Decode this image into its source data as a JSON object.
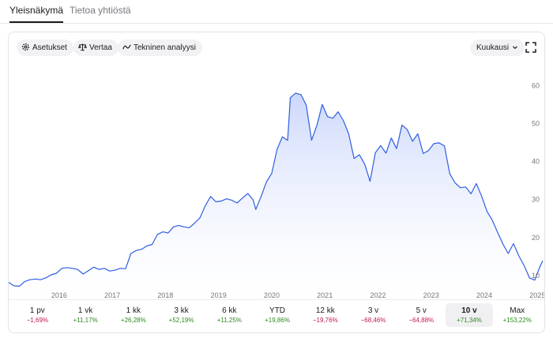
{
  "tabs": [
    {
      "label": "Yleisnäkymä",
      "active": true
    },
    {
      "label": "Tietoa yhtiöstä",
      "active": false
    }
  ],
  "toolbar": {
    "settings_label": "Asetukset",
    "compare_label": "Vertaa",
    "tech_label": "Tekninen analyysi",
    "period_label": "Kuukausi",
    "icons": [
      "gear-icon",
      "scale-icon",
      "line-chart-icon",
      "chevron-down-icon",
      "fullscreen-icon"
    ]
  },
  "chart_data": {
    "type": "area",
    "x_ticks": [
      "2016",
      "2017",
      "2018",
      "2019",
      "2020",
      "2021",
      "2022",
      "2023",
      "2024",
      "2025"
    ],
    "y_ticks": [
      "10",
      "20",
      "30",
      "40",
      "50",
      "60"
    ],
    "ylim": [
      5,
      64
    ],
    "xlim": [
      2015.55,
      2025.6
    ],
    "grid": false,
    "line_color": "#2f5fe0",
    "fill_color": "#e4eafc",
    "x": [
      2015.55,
      2015.65,
      2015.75,
      2015.85,
      2015.95,
      2016.05,
      2016.15,
      2016.25,
      2016.35,
      2016.45,
      2016.55,
      2016.65,
      2016.75,
      2016.85,
      2016.95,
      2017.05,
      2017.15,
      2017.25,
      2017.35,
      2017.45,
      2017.55,
      2017.65,
      2017.75,
      2017.85,
      2017.95,
      2018.05,
      2018.15,
      2018.25,
      2018.35,
      2018.45,
      2018.55,
      2018.65,
      2018.75,
      2018.85,
      2018.95,
      2019.05,
      2019.15,
      2019.25,
      2019.35,
      2019.45,
      2019.55,
      2019.65,
      2019.75,
      2019.85,
      2019.95,
      2020.05,
      2020.15,
      2020.2,
      2020.3,
      2020.4,
      2020.5,
      2020.6,
      2020.7,
      2020.8,
      2020.85,
      2020.95,
      2021.05,
      2021.15,
      2021.25,
      2021.35,
      2021.45,
      2021.55,
      2021.65,
      2021.75,
      2021.85,
      2021.95,
      2022.05,
      2022.15,
      2022.25,
      2022.35,
      2022.45,
      2022.55,
      2022.65,
      2022.75,
      2022.85,
      2022.95,
      2023.05,
      2023.15,
      2023.25,
      2023.35,
      2023.45,
      2023.55,
      2023.65,
      2023.75,
      2023.85,
      2023.95,
      2024.05,
      2024.15,
      2024.25,
      2024.35,
      2024.45,
      2024.55,
      2024.65,
      2024.75,
      2024.85,
      2024.95,
      2025.05,
      2025.15,
      2025.25,
      2025.35,
      2025.45,
      2025.55,
      2025.6
    ],
    "y": [
      8.2,
      7.3,
      7.2,
      8.4,
      8.9,
      9.1,
      8.9,
      9.4,
      10.2,
      10.6,
      11.9,
      12.1,
      11.9,
      11.6,
      10.4,
      11.3,
      12.2,
      11.6,
      11.9,
      11.2,
      11.4,
      11.9,
      11.8,
      15.8,
      16.6,
      16.9,
      17.8,
      18.2,
      20.8,
      21.5,
      21.2,
      22.8,
      23.2,
      22.8,
      22.6,
      23.8,
      25.2,
      28.4,
      30.8,
      29.4,
      29.6,
      30.2,
      29.8,
      29.1,
      30.4,
      31.6,
      29.9,
      27.4,
      30.8,
      34.6,
      36.9,
      43.2,
      46.5,
      45.6,
      56.8,
      58.0,
      57.6,
      54.8,
      45.6,
      49.5,
      55.0,
      51.8,
      51.4,
      53.1,
      50.7,
      47.2,
      40.8,
      41.8,
      39.3,
      34.8,
      42.3,
      44.2,
      42.2,
      46.2,
      43.4,
      49.6,
      48.4,
      45.3,
      47.3,
      42.1,
      42.9,
      44.7,
      44.9,
      44.1,
      36.8,
      34.4,
      33.1,
      33.3,
      31.5,
      34.2,
      30.9,
      26.9,
      24.6,
      21.4,
      18.3,
      15.8,
      18.4,
      15.2,
      12.6,
      9.4,
      8.8,
      12.4,
      13.9
    ]
  },
  "ranges": [
    {
      "label": "1 pv",
      "change": "−1,69%",
      "positive": false,
      "active": false
    },
    {
      "label": "1 vk",
      "change": "+11,17%",
      "positive": true,
      "active": false
    },
    {
      "label": "1 kk",
      "change": "+26,28%",
      "positive": true,
      "active": false
    },
    {
      "label": "3 kk",
      "change": "+52,19%",
      "positive": true,
      "active": false
    },
    {
      "label": "6 kk",
      "change": "+11,25%",
      "positive": true,
      "active": false
    },
    {
      "label": "YTD",
      "change": "+19,86%",
      "positive": true,
      "active": false
    },
    {
      "label": "12 kk",
      "change": "−19,76%",
      "positive": false,
      "active": false
    },
    {
      "label": "3 v",
      "change": "−68,46%",
      "positive": false,
      "active": false
    },
    {
      "label": "5 v",
      "change": "−64,88%",
      "positive": false,
      "active": false
    },
    {
      "label": "10 v",
      "change": "+71,34%",
      "positive": true,
      "active": true
    },
    {
      "label": "Max",
      "change": "+153,22%",
      "positive": true,
      "active": false
    }
  ]
}
